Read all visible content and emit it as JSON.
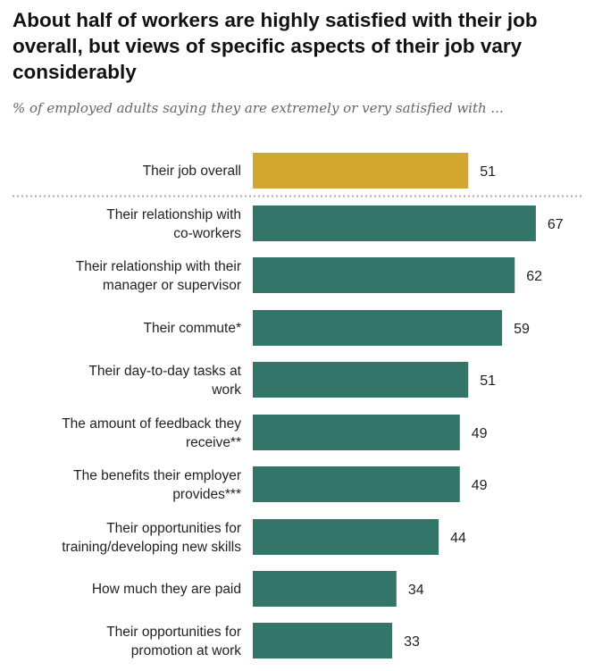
{
  "title": "About half of workers are highly satisfied with their job overall, but views of specific aspects of their job vary considerably",
  "subtitle": "% of employed adults saying they are extremely or very satisfied with ...",
  "colors": {
    "overall": "#D1A730",
    "aspects": "#34756A",
    "divider": "#A8A8A8"
  },
  "chart_data": {
    "type": "bar",
    "orientation": "horizontal",
    "title": "About half of workers are highly satisfied with their job overall, but views of specific aspects of their job vary considerably",
    "subtitle": "% of employed adults saying they are extremely or very satisfied with ...",
    "categories": [
      [
        "Their job overall"
      ],
      [
        "Their relationship with",
        "co-workers"
      ],
      [
        "Their relationship with their",
        "manager or supervisor"
      ],
      [
        "Their commute*"
      ],
      [
        "Their day-to-day tasks at",
        "work"
      ],
      [
        "The amount of feedback they",
        "receive**"
      ],
      [
        "The benefits their employer",
        "provides***"
      ],
      [
        "Their opportunities for",
        "training/developing new skills"
      ],
      [
        "How much they are paid"
      ],
      [
        "Their opportunities for",
        "promotion at work"
      ]
    ],
    "values": [
      51,
      67,
      62,
      59,
      51,
      49,
      49,
      44,
      34,
      33
    ],
    "highlight_index": 0,
    "divider_after_index": 0,
    "xlim": [
      0,
      100
    ]
  }
}
